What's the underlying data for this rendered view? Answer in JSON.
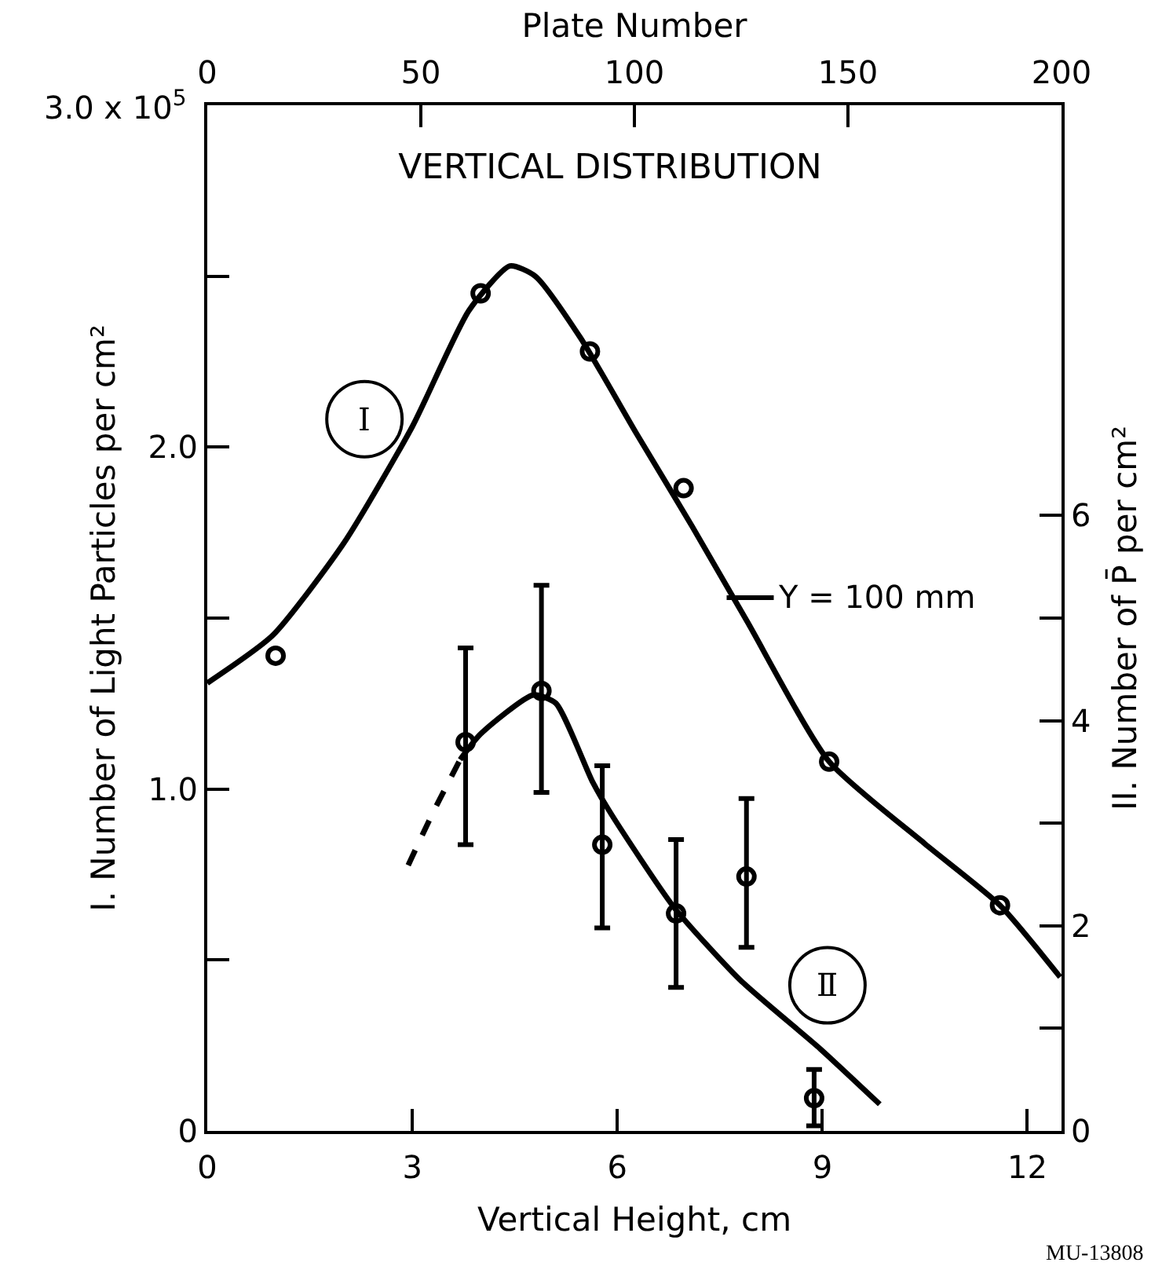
{
  "chart_data": {
    "type": "line",
    "title": "VERTICAL DISTRIBUTION",
    "xlabel": "Vertical Height, cm",
    "x2label": "Plate Number",
    "ylabel": "I. Number of Light Particles per cm²",
    "y2label": "II. Number of P̄ per cm²",
    "xlim": [
      0,
      12.5
    ],
    "xticks": [
      0,
      3,
      6,
      9,
      12
    ],
    "x2lim": [
      0,
      200
    ],
    "x2ticks": [
      0,
      50,
      100,
      150,
      200
    ],
    "ylim": [
      0,
      3.0
    ],
    "yticks": [
      0,
      {
        "value": 0.5,
        "label": null
      },
      {
        "value": 1.0,
        "label": "1.0"
      },
      {
        "value": 1.5,
        "label": null
      },
      {
        "value": 2.0,
        "label": "2.0"
      },
      {
        "value": 2.5,
        "label": null
      },
      {
        "value": 3.0,
        "label": null
      }
    ],
    "y2lim": [
      0,
      10
    ],
    "y2ticks": [
      0,
      {
        "value": 1,
        "label": null
      },
      2,
      {
        "value": 3,
        "label": null
      },
      4,
      {
        "value": 5,
        "label": null
      },
      6
    ],
    "series": [
      {
        "type": "scatter",
        "marker": "circle",
        "color": "#000000",
        "x": [
          1.0,
          4.0,
          5.6,
          6.97,
          9.1,
          11.6
        ],
        "values": [
          1.39,
          2.45,
          2.28,
          1.88,
          1.08,
          0.66
        ]
      },
      {
        "marker": "none",
        "line_style": "solid",
        "color": "#000000",
        "x": [
          0,
          0.96,
          2.0,
          3.0,
          3.83,
          4.43,
          4.8,
          5.46,
          6.28,
          7.09,
          7.9,
          9.1,
          10.5,
          11.6,
          12.48
        ],
        "values": [
          1.31,
          1.45,
          1.72,
          2.06,
          2.4,
          2.53,
          2.5,
          2.32,
          2.04,
          1.77,
          1.49,
          1.08,
          0.84,
          0.66,
          0.45
        ]
      },
      {
        "type": "scatter",
        "axis": "y2",
        "marker": "circle",
        "color": "#000000",
        "x": [
          3.78,
          4.89,
          5.78,
          6.86,
          7.89,
          8.88
        ],
        "values": [
          3.79,
          4.29,
          2.79,
          2.12,
          2.48,
          0.32
        ],
        "errors": [
          [
            2.79,
            4.71
          ],
          [
            3.3,
            5.32
          ],
          [
            1.98,
            3.56
          ],
          [
            1.4,
            2.84
          ],
          [
            1.79,
            3.24
          ],
          [
            0.05,
            0.6
          ]
        ]
      },
      {
        "axis": "y2",
        "marker": "none",
        "line_style": "dashed",
        "color": "#000000",
        "x": [
          2.94,
          3.3,
          3.7
        ],
        "values": [
          2.59,
          3.1,
          3.62
        ]
      },
      {
        "axis": "y2",
        "marker": "none",
        "line_style": "solid",
        "color": "#000000",
        "x": [
          3.7,
          4.0,
          4.77,
          5.1,
          5.64,
          5.92,
          6.83,
          7.8,
          8.97,
          9.84
        ],
        "values": [
          3.62,
          3.87,
          4.25,
          4.17,
          3.4,
          3.08,
          2.18,
          1.47,
          0.8,
          0.26
        ]
      }
    ],
    "annotations": [
      "3.0 x 10$^{5}$",
      "Ⅰ",
      "Ⅱ",
      {
        "text": "Y = 100 mm",
        "x": 7.6,
        "y": 1.56
      },
      "MU-13808"
    ]
  }
}
